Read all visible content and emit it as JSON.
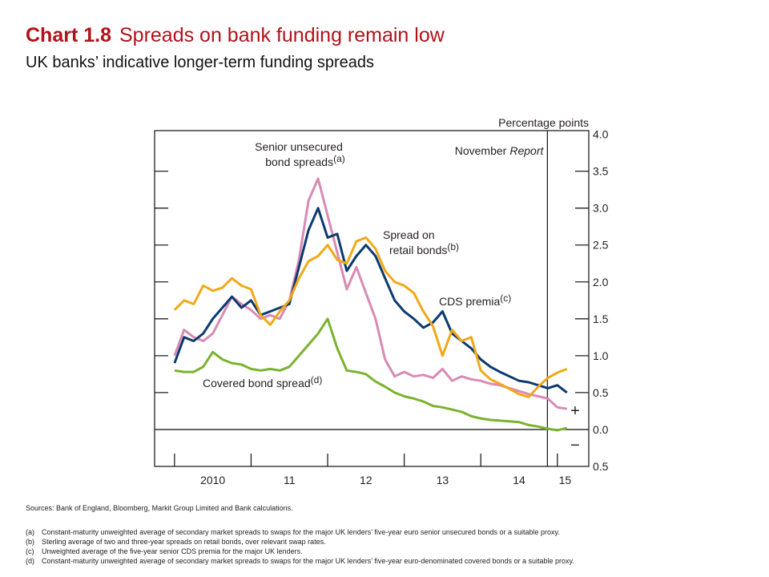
{
  "chart_data": {
    "type": "line",
    "title_number": "Chart 1.8",
    "title": "Spreads on bank funding remain low",
    "subtitle": "UK banks’ indicative longer-term funding spreads",
    "y_axis_label": "Percentage points",
    "report_label": {
      "text": "November",
      "italic": "Report"
    },
    "report_line": 2014.87,
    "sign_labels": [
      "+",
      "−"
    ],
    "x": [
      2010,
      2010.125,
      2010.25,
      2010.375,
      2010.5,
      2010.625,
      2010.75,
      2010.875,
      2011,
      2011.125,
      2011.25,
      2011.375,
      2011.5,
      2011.625,
      2011.75,
      2011.875,
      2012,
      2012.125,
      2012.25,
      2012.375,
      2012.5,
      2012.625,
      2012.75,
      2012.875,
      2013,
      2013.125,
      2013.25,
      2013.375,
      2013.5,
      2013.625,
      2013.75,
      2013.875,
      2014,
      2014.125,
      2014.25,
      2014.375,
      2014.5,
      2014.625,
      2014.75,
      2014.875,
      2015,
      2015.125
    ],
    "series": [
      {
        "name_lines": [
          "Senior unsecured",
          "bond spreads"
        ],
        "note": "(a)",
        "color": "#d98ab4",
        "values": [
          1.0,
          1.35,
          1.25,
          1.2,
          1.3,
          1.55,
          1.8,
          1.7,
          1.62,
          1.5,
          1.55,
          1.5,
          1.75,
          2.3,
          3.1,
          3.4,
          2.9,
          2.4,
          1.9,
          2.2,
          1.85,
          1.5,
          0.95,
          0.72,
          0.78,
          0.72,
          0.74,
          0.7,
          0.82,
          0.66,
          0.72,
          0.68,
          0.66,
          0.62,
          0.6,
          0.56,
          0.52,
          0.48,
          0.45,
          0.42,
          0.3,
          0.28
        ]
      },
      {
        "name_lines": [
          "Spread on",
          "retail bonds"
        ],
        "note": "(b)",
        "color": "#f2a818",
        "values": [
          1.62,
          1.75,
          1.7,
          1.95,
          1.88,
          1.92,
          2.05,
          1.95,
          1.9,
          1.55,
          1.42,
          1.6,
          1.75,
          2.05,
          2.28,
          2.35,
          2.5,
          2.3,
          2.25,
          2.55,
          2.6,
          2.45,
          2.15,
          2.0,
          1.95,
          1.85,
          1.6,
          1.4,
          1.0,
          1.35,
          1.2,
          1.25,
          0.8,
          0.68,
          0.62,
          0.55,
          0.48,
          0.44,
          0.58,
          0.7,
          0.77,
          0.82
        ]
      },
      {
        "name_lines": [
          "CDS premia"
        ],
        "note": "(c)",
        "color": "#0b3a70",
        "values": [
          0.9,
          1.25,
          1.2,
          1.3,
          1.5,
          1.65,
          1.8,
          1.65,
          1.75,
          1.55,
          1.6,
          1.65,
          1.7,
          2.2,
          2.7,
          3.0,
          2.6,
          2.65,
          2.15,
          2.35,
          2.5,
          2.35,
          2.05,
          1.75,
          1.6,
          1.5,
          1.38,
          1.45,
          1.6,
          1.3,
          1.2,
          1.1,
          0.95,
          0.85,
          0.78,
          0.72,
          0.66,
          0.64,
          0.6,
          0.56,
          0.6,
          0.5
        ]
      },
      {
        "name_lines": [
          "Covered bond spread"
        ],
        "note": "(d)",
        "color": "#7ab32e",
        "values": [
          0.8,
          0.78,
          0.78,
          0.85,
          1.05,
          0.95,
          0.9,
          0.88,
          0.82,
          0.8,
          0.82,
          0.8,
          0.85,
          1.0,
          1.15,
          1.3,
          1.5,
          1.1,
          0.8,
          0.78,
          0.75,
          0.65,
          0.58,
          0.5,
          0.45,
          0.42,
          0.38,
          0.32,
          0.3,
          0.27,
          0.24,
          0.18,
          0.15,
          0.13,
          0.12,
          0.11,
          0.1,
          0.06,
          0.04,
          0.01,
          -0.01,
          0.02
        ]
      }
    ],
    "xlim": [
      2009.74,
      2015.41
    ],
    "x_tick_marks": [
      2010,
      2011,
      2012,
      2013,
      2014,
      2015
    ],
    "xticks": [
      {
        "value": 2010.5,
        "label": "2010"
      },
      {
        "value": 2011.5,
        "label": "11"
      },
      {
        "value": 2012.5,
        "label": "12"
      },
      {
        "value": 2013.5,
        "label": "13"
      },
      {
        "value": 2014.5,
        "label": "14"
      },
      {
        "value": 2015.1,
        "label": "15"
      }
    ],
    "ylim": [
      -0.5,
      4.05
    ],
    "yticks": [
      {
        "value": 4,
        "label": "4.0"
      },
      3.5,
      {
        "value": 3,
        "label": "3.0"
      },
      2.5,
      {
        "value": 2,
        "label": "2.0"
      },
      1.5,
      {
        "value": 1,
        "label": "1.0"
      },
      0.5,
      {
        "value": 0,
        "label": "0.0"
      },
      {
        "value": -0.5,
        "label": "0.5"
      }
    ],
    "sources": "Sources: Bank of England, Bloomberg, Markit Group Limited and Bank calculations.",
    "footnotes": [
      {
        "key": "(a)",
        "text": "Constant-maturity unweighted average of secondary market spreads to swaps for the major UK lenders’ five-year euro senior unsecured bonds or a suitable proxy."
      },
      {
        "key": "(b)",
        "text": "Sterling average of two and three-year spreads on retail bonds, over relevant swap rates."
      },
      {
        "key": "(c)",
        "text": "Unweighted average of the five-year senior CDS premia for the major UK lenders."
      },
      {
        "key": "(d)",
        "text": "Constant-maturity unweighted average of secondary market spreads to swaps for the major UK lenders’ five-year euro-denominated covered bonds or a suitable proxy."
      }
    ]
  }
}
